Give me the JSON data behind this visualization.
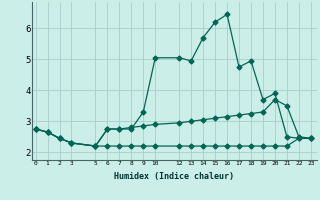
{
  "xlabel": "Humidex (Indice chaleur)",
  "bg_color": "#cceee8",
  "grid_color": "#aacccc",
  "line_color": "#006655",
  "line1_x": [
    0,
    1,
    2,
    3,
    5,
    6,
    7,
    8,
    9,
    10,
    12,
    13,
    14,
    15,
    16,
    17,
    18,
    19,
    20,
    21,
    22,
    23
  ],
  "line1_y": [
    2.75,
    2.65,
    2.45,
    2.3,
    2.2,
    2.75,
    2.75,
    2.75,
    3.3,
    5.05,
    5.05,
    4.95,
    5.7,
    6.2,
    6.45,
    4.75,
    4.95,
    3.7,
    3.9,
    2.5,
    2.45,
    2.45
  ],
  "line2_x": [
    0,
    1,
    2,
    3,
    5,
    6,
    7,
    8,
    9,
    10,
    12,
    13,
    14,
    15,
    16,
    17,
    18,
    19,
    20,
    21,
    22,
    23
  ],
  "line2_y": [
    2.75,
    2.65,
    2.45,
    2.3,
    2.2,
    2.75,
    2.75,
    2.8,
    2.85,
    2.9,
    2.95,
    3.0,
    3.05,
    3.1,
    3.15,
    3.2,
    3.25,
    3.3,
    3.7,
    3.5,
    2.5,
    2.45
  ],
  "line3_x": [
    0,
    1,
    2,
    3,
    5,
    6,
    7,
    8,
    9,
    10,
    12,
    13,
    14,
    15,
    16,
    17,
    18,
    19,
    20,
    21,
    22,
    23
  ],
  "line3_y": [
    2.75,
    2.65,
    2.45,
    2.3,
    2.2,
    2.2,
    2.2,
    2.2,
    2.2,
    2.2,
    2.2,
    2.2,
    2.2,
    2.2,
    2.2,
    2.2,
    2.2,
    2.2,
    2.2,
    2.2,
    2.45,
    2.45
  ],
  "ylim": [
    1.75,
    6.85
  ],
  "yticks": [
    2,
    3,
    4,
    5,
    6
  ],
  "xticks": [
    0,
    1,
    2,
    3,
    5,
    6,
    7,
    8,
    9,
    10,
    12,
    13,
    14,
    15,
    16,
    17,
    18,
    19,
    20,
    21,
    22,
    23
  ],
  "xlim": [
    -0.3,
    23.5
  ]
}
